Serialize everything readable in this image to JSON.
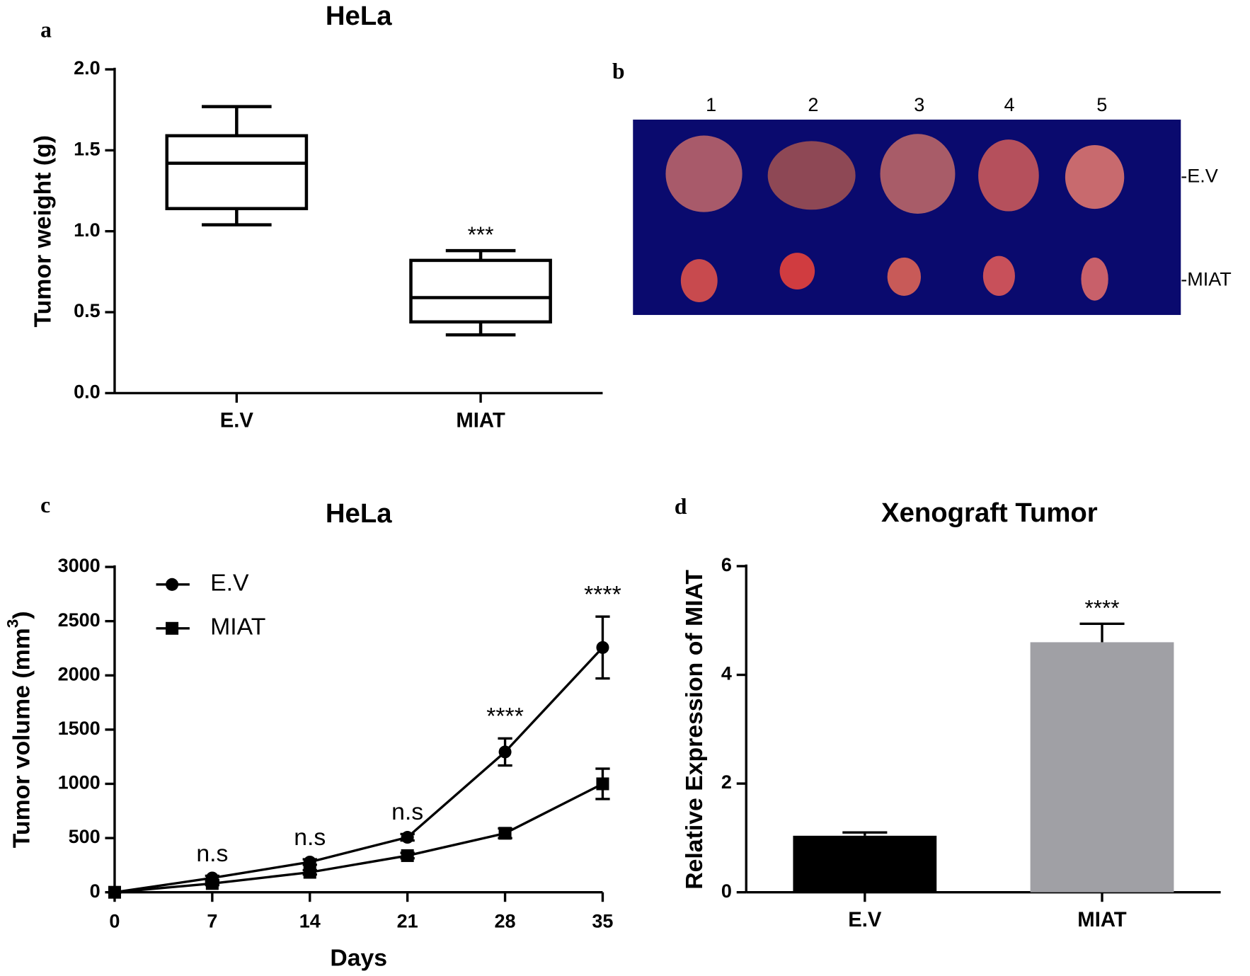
{
  "chart_data": [
    {
      "type": "box",
      "panel": "a",
      "title": "HeLa",
      "ylabel": "Tumor weight (g)",
      "categories": [
        "E.V",
        "MIAT"
      ],
      "boxes": [
        {
          "min": 1.04,
          "q1": 1.14,
          "median": 1.42,
          "q3": 1.59,
          "max": 1.77
        },
        {
          "min": 0.36,
          "q1": 0.44,
          "median": 0.59,
          "q3": 0.82,
          "max": 0.88
        }
      ],
      "ylim": [
        0,
        2
      ],
      "yticks": [
        {
          "value": 0,
          "label": "0.0"
        },
        {
          "value": 0.5,
          "label": "0.5"
        },
        {
          "value": 1,
          "label": "1.0"
        },
        {
          "value": 1.5,
          "label": "1.5"
        },
        {
          "value": 2,
          "label": "2.0"
        }
      ],
      "annotations": [
        {
          "text": "***",
          "category": "MIAT"
        }
      ],
      "color": "#000000"
    },
    {
      "type": "line",
      "panel": "c",
      "title": "HeLa",
      "ylabel": [
        "Tumor volume (mm",
        "3",
        ")"
      ],
      "xlabel": "Days",
      "x": [
        0,
        7,
        14,
        21,
        28,
        35
      ],
      "xlim": [
        0,
        35
      ],
      "xticks": [
        0,
        7,
        14,
        21,
        28,
        35
      ],
      "ylim": [
        0,
        3000
      ],
      "yticks": [
        0,
        500,
        1000,
        1500,
        2000,
        2500,
        3000
      ],
      "series": [
        {
          "name": "E.V",
          "color": "#000000",
          "marker": "circle",
          "values": [
            0,
            132,
            279,
            507,
            1294,
            2257
          ],
          "errors": [
            0,
            20,
            25,
            30,
            125,
            285
          ]
        },
        {
          "name": "MIAT",
          "color": "#000000",
          "marker": "square",
          "values": [
            0,
            81,
            184,
            338,
            544,
            1000
          ],
          "errors": [
            0,
            15,
            20,
            25,
            45,
            140
          ]
        }
      ],
      "annotations": [
        {
          "text": "n.s",
          "x": 7
        },
        {
          "text": "n.s",
          "x": 14
        },
        {
          "text": "n.s",
          "x": 21
        },
        {
          "text": "****",
          "x": 28
        },
        {
          "text": "****",
          "x": 35
        }
      ],
      "legend": "upper left"
    },
    {
      "type": "bar",
      "panel": "d",
      "title": "Xenograft Tumor",
      "ylabel": "Relative Expression of MIAT",
      "categories": [
        "E.V",
        "MIAT"
      ],
      "values": [
        1.04,
        4.6
      ],
      "errors": [
        0.06,
        0.34
      ],
      "colors": [
        "#000000",
        "#a0a0a5"
      ],
      "ylim": [
        0,
        6
      ],
      "yticks": [
        0,
        2,
        4,
        6
      ],
      "annotations": [
        {
          "text": "****",
          "category": "MIAT"
        }
      ]
    }
  ],
  "panel_b": {
    "panel": "b",
    "columns": [
      "1",
      "2",
      "3",
      "4",
      "5"
    ],
    "rows": [
      "-E.V",
      "-MIAT"
    ]
  }
}
